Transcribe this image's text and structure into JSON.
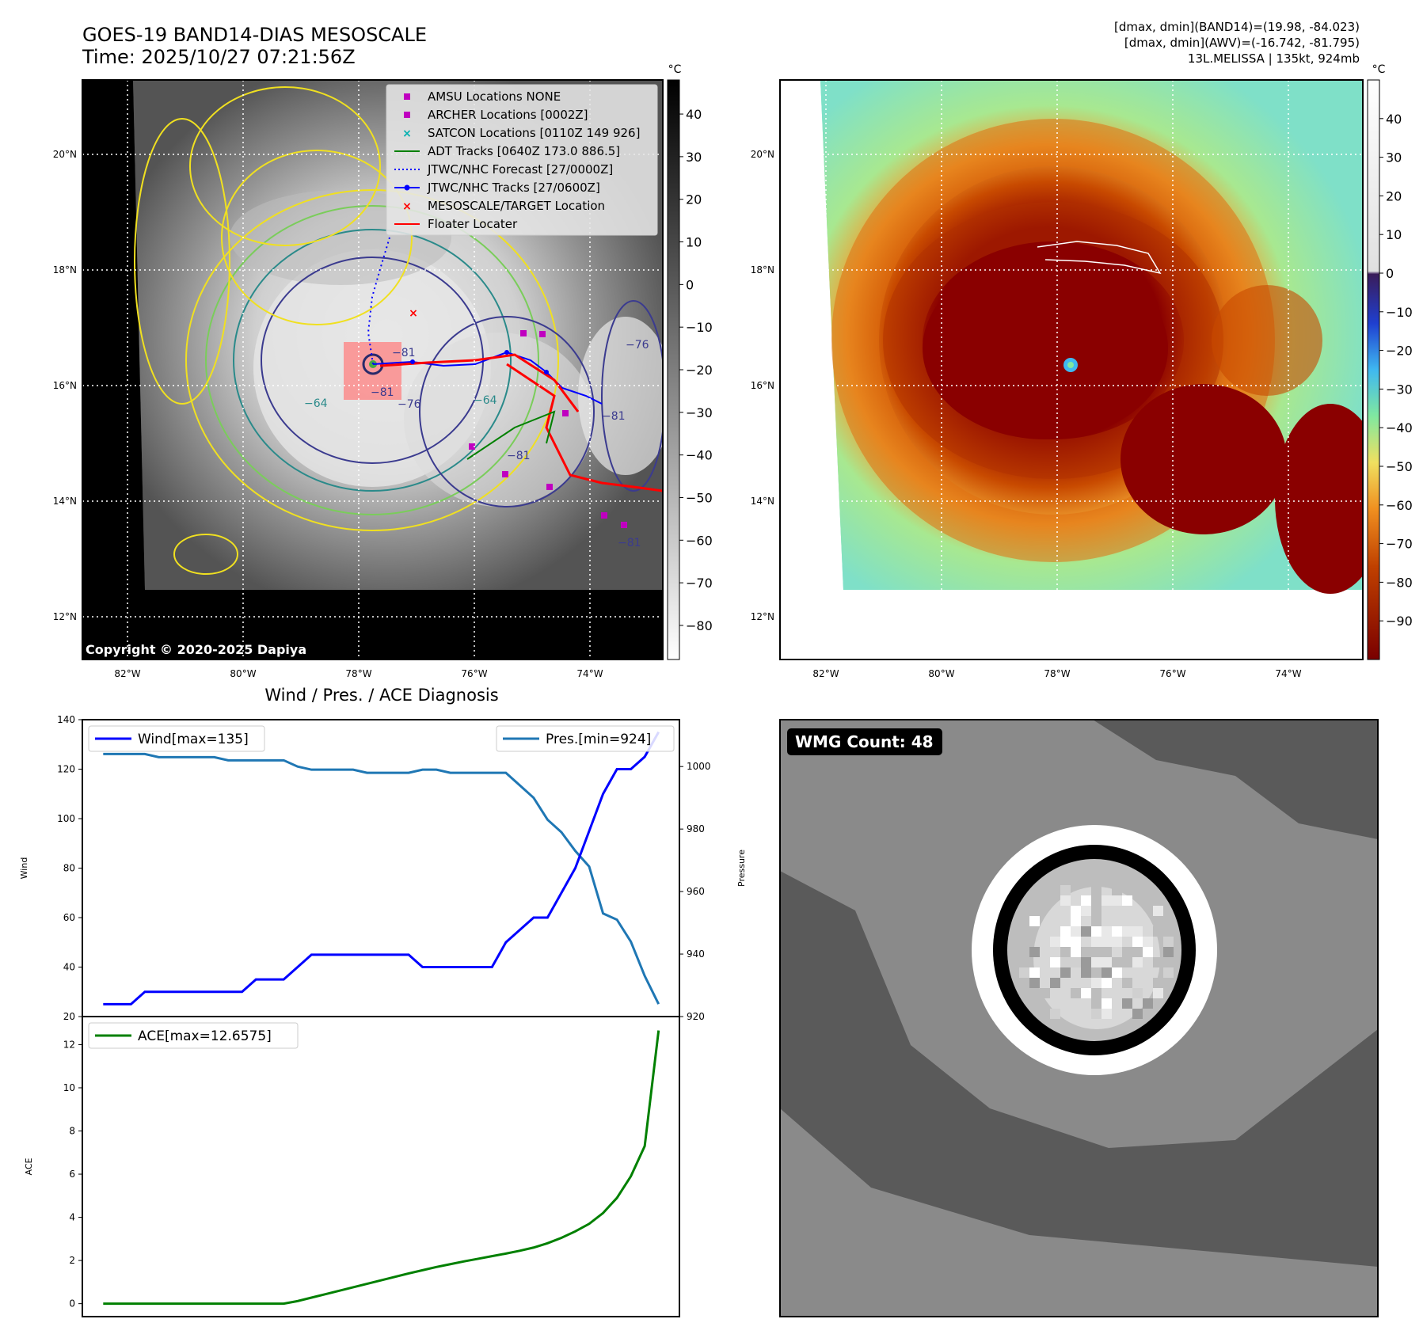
{
  "header": {
    "title_line1": "GOES-19 BAND14-DIAS MESOSCALE",
    "title_line2": "Time: 2025/10/27 07:21:56Z",
    "info_line1": "[dmax, dmin](BAND14)=(19.98, -84.023)",
    "info_line2": "[dmax, dmin](AWV)=(-16.742, -81.795)",
    "info_line3": "13L.MELISSA | 135kt, 924mb"
  },
  "copyright": "Copyright © 2020-2025 Dapiya",
  "map_axes": {
    "lon_labels": [
      "82°W",
      "80°W",
      "78°W",
      "76°W",
      "74°W"
    ],
    "lat_labels": [
      "20°N",
      "18°N",
      "16°N",
      "14°N",
      "12°N"
    ]
  },
  "colorbar_gray": {
    "unit": "°C",
    "ticks": [
      "40",
      "30",
      "20",
      "10",
      "0",
      "−10",
      "−20",
      "−30",
      "−40",
      "−50",
      "−60",
      "−70",
      "−80"
    ]
  },
  "colorbar_color": {
    "unit": "°C",
    "ticks": [
      "40",
      "30",
      "20",
      "10",
      "0",
      "−10",
      "−20",
      "−30",
      "−40",
      "−50",
      "−60",
      "−70",
      "−80",
      "−90"
    ]
  },
  "legend": [
    {
      "label": "AMSU Locations NONE",
      "marker": "square",
      "color": "#c000c0"
    },
    {
      "label": "ARCHER Locations [0002Z]",
      "marker": "square",
      "color": "#c000c0"
    },
    {
      "label": "SATCON Locations [0110Z 149 926]",
      "marker": "x",
      "color": "#00b0b0"
    },
    {
      "label": "ADT Tracks [0640Z 173.0 886.5]",
      "marker": "line",
      "color": "#008000"
    },
    {
      "label": "JTWC/NHC Forecast [27/0000Z]",
      "marker": "dotted",
      "color": "#0000ff"
    },
    {
      "label": "JTWC/NHC Tracks [27/0600Z]",
      "marker": "line-dot",
      "color": "#0000ff"
    },
    {
      "label": "MESOSCALE/TARGET Location",
      "marker": "x",
      "color": "#ff0000"
    },
    {
      "label": "Floater Locater",
      "marker": "line",
      "color": "#ff0000"
    }
  ],
  "contour_labels": [
    "−81",
    "−76",
    "−64",
    "−81",
    "−64",
    "−81",
    "−81",
    "−76",
    "−81"
  ],
  "diag_title": "Wind / Pres. / ACE Diagnosis",
  "wmg": {
    "label": "WMG Count: 48"
  },
  "chart_data": [
    {
      "type": "line",
      "x": [
        0,
        1,
        2,
        3,
        4,
        5,
        6,
        7,
        8,
        9,
        10,
        11,
        12,
        13,
        14,
        15,
        16,
        17,
        18,
        19,
        20,
        21,
        22,
        23,
        24,
        25,
        26,
        27,
        28,
        29,
        30,
        31,
        32,
        33,
        34,
        35,
        36,
        37,
        38,
        39,
        40
      ],
      "series": [
        {
          "name": "Wind[max=135]",
          "axis": "left",
          "color": "#0000ff",
          "values": [
            25,
            25,
            25,
            30,
            30,
            30,
            30,
            30,
            30,
            30,
            30,
            35,
            35,
            35,
            40,
            45,
            45,
            45,
            45,
            45,
            45,
            45,
            45,
            40,
            40,
            40,
            40,
            40,
            40,
            50,
            55,
            60,
            60,
            70,
            80,
            95,
            110,
            120,
            120,
            125,
            135
          ]
        },
        {
          "name": "Pres.[min=924]",
          "axis": "right",
          "color": "#1f77b4",
          "values": [
            1004,
            1004,
            1004,
            1004,
            1003,
            1003,
            1003,
            1003,
            1003,
            1002,
            1002,
            1002,
            1002,
            1002,
            1000,
            999,
            999,
            999,
            999,
            998,
            998,
            998,
            998,
            999,
            999,
            998,
            998,
            998,
            998,
            998,
            994,
            990,
            983,
            979,
            973,
            968,
            953,
            951,
            944,
            933,
            924
          ]
        }
      ],
      "ylabel": "Wind",
      "y2label": "Pressure",
      "ylim": [
        20,
        140
      ],
      "y2lim": [
        920,
        1015
      ],
      "yticks": [
        20,
        40,
        60,
        80,
        100,
        120,
        140
      ],
      "y2ticks": [
        920,
        940,
        960,
        980,
        1000
      ]
    },
    {
      "type": "line",
      "x": [
        0,
        1,
        2,
        3,
        4,
        5,
        6,
        7,
        8,
        9,
        10,
        11,
        12,
        13,
        14,
        15,
        16,
        17,
        18,
        19,
        20,
        21,
        22,
        23,
        24,
        25,
        26,
        27,
        28,
        29,
        30,
        31,
        32,
        33,
        34,
        35,
        36,
        37,
        38,
        39,
        40
      ],
      "series": [
        {
          "name": "ACE[max=12.6575]",
          "color": "#008000",
          "values": [
            0,
            0,
            0,
            0,
            0,
            0,
            0,
            0,
            0,
            0,
            0,
            0,
            0,
            0,
            0.12,
            0.28,
            0.44,
            0.6,
            0.76,
            0.92,
            1.08,
            1.24,
            1.4,
            1.55,
            1.7,
            1.83,
            1.96,
            2.08,
            2.2,
            2.32,
            2.45,
            2.6,
            2.8,
            3.05,
            3.35,
            3.7,
            4.2,
            4.9,
            5.9,
            7.3,
            12.6575
          ]
        }
      ],
      "ylabel": "ACE",
      "ylim": [
        -0.6,
        13.3
      ],
      "yticks": [
        0,
        2,
        4,
        6,
        8,
        10,
        12
      ]
    }
  ]
}
